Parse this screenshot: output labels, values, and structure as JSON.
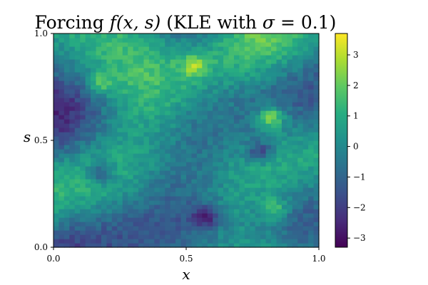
{
  "chart_data": {
    "type": "heatmap",
    "title": {
      "prefix": "Forcing ",
      "func": "f(x, s)",
      "middle": " (KLE with ",
      "sigma_symbol": "σ",
      "equals": " = 0.1)"
    },
    "xlabel": "x",
    "ylabel": "s",
    "x_range": [
      0,
      1
    ],
    "y_range": [
      0,
      1
    ],
    "x_ticks": [
      0.0,
      0.5,
      1.0
    ],
    "x_tick_labels": [
      "0.0",
      "0.5",
      "1.0"
    ],
    "y_ticks": [
      0.0,
      0.5,
      1.0
    ],
    "y_tick_labels": [
      "0.0",
      "0.5",
      "1.0"
    ],
    "grid_resolution": [
      50,
      50
    ],
    "colormap": "viridis",
    "colorbar": {
      "range": [
        -3.3,
        3.7
      ],
      "ticks": [
        -3,
        -2,
        -1,
        0,
        1,
        2,
        3
      ],
      "tick_labels": [
        "−3",
        "−2",
        "−1",
        "0",
        "1",
        "2",
        "3"
      ]
    },
    "notable_features": [
      {
        "x": 0.82,
        "s": 0.61,
        "value": 3.6,
        "description": "bright yellow peak (maximum)"
      },
      {
        "x": 0.57,
        "s": 0.14,
        "value": -3.2,
        "description": "darkest trough (minimum)"
      },
      {
        "x": 0.53,
        "s": 0.85,
        "value": 2.8,
        "description": "local peak"
      },
      {
        "x": 0.18,
        "s": 0.77,
        "value": 2.4,
        "description": "local peak"
      },
      {
        "x": 0.83,
        "s": 0.18,
        "value": 2.2,
        "description": "local peak"
      },
      {
        "x": 0.18,
        "s": 0.35,
        "value": -2.3,
        "description": "low region"
      },
      {
        "x": 0.78,
        "s": 0.45,
        "value": -2.6,
        "description": "low region"
      }
    ],
    "grid": false
  }
}
